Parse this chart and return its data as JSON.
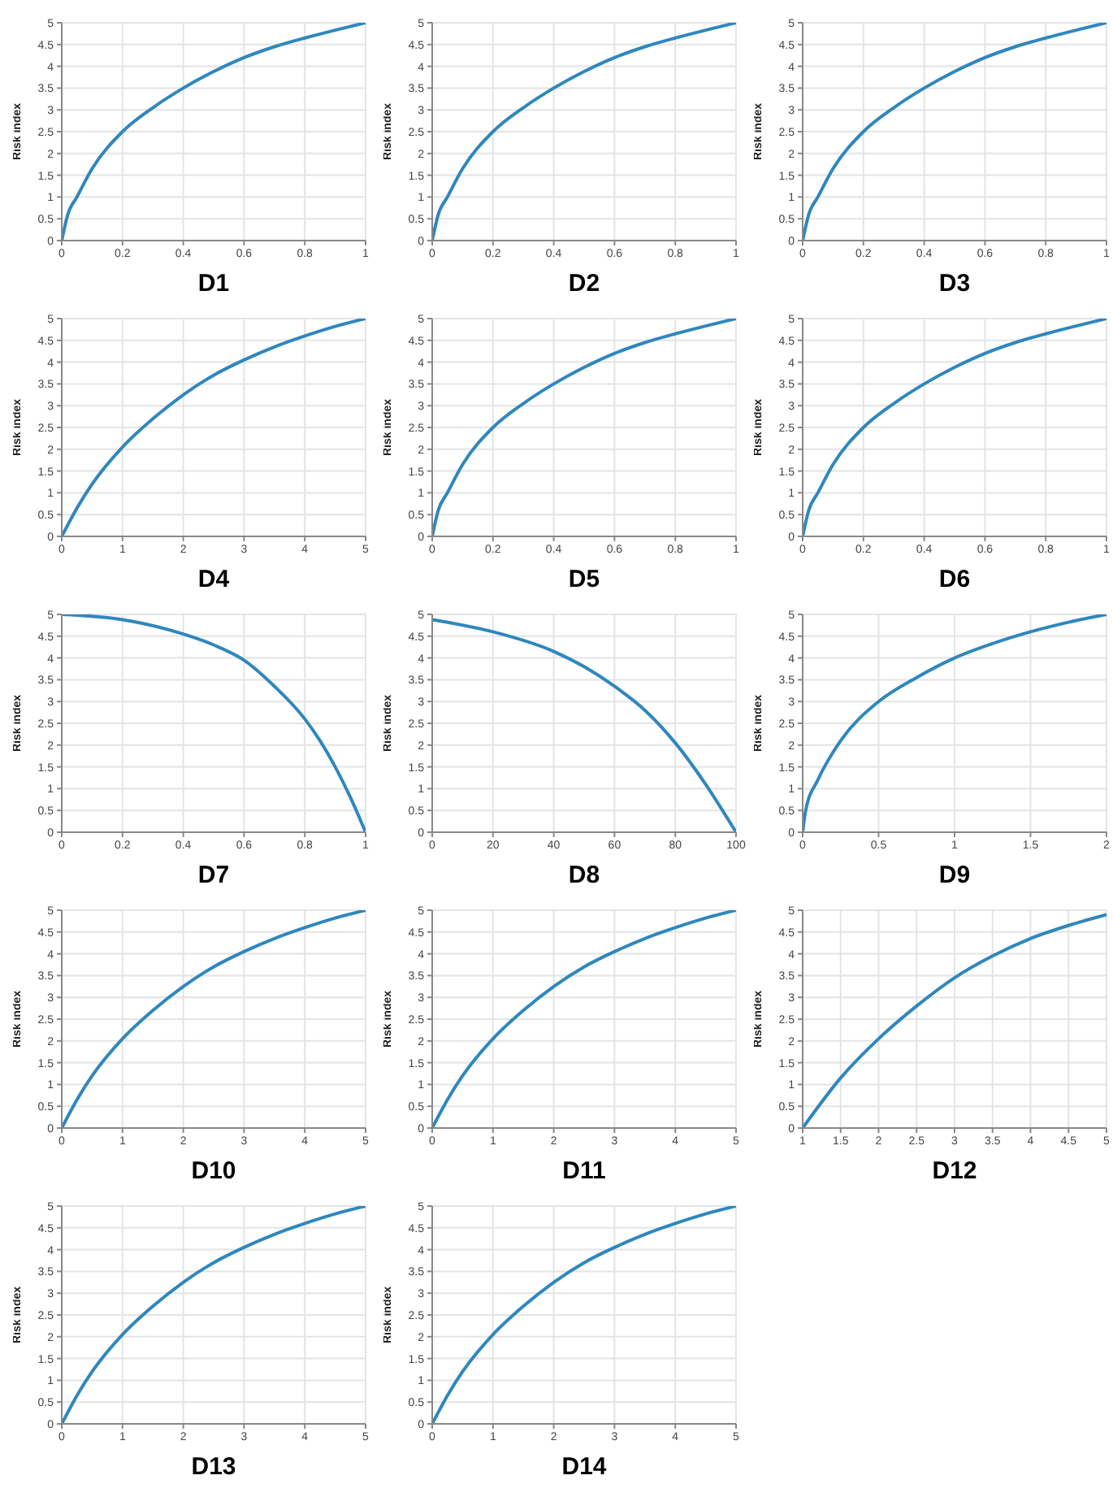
{
  "chart_data": [
    {
      "type": "line",
      "title": "D1",
      "ylabel": "Risk index",
      "x": [
        0,
        0.02,
        0.05,
        0.1,
        0.2,
        0.3,
        0.4,
        0.5,
        0.6,
        0.7,
        0.8,
        0.9,
        1
      ],
      "series": [
        {
          "color": "#2f87bd",
          "values": [
            0,
            0.6,
            1.0,
            1.65,
            2.5,
            3.05,
            3.5,
            3.88,
            4.2,
            4.45,
            4.65,
            4.83,
            5
          ]
        }
      ],
      "xlim": [
        0,
        1
      ],
      "ylim": [
        0,
        5
      ],
      "xticks": [
        0,
        0.2,
        0.4,
        0.6,
        0.8,
        1
      ],
      "yticks": [
        0,
        0.5,
        1,
        1.5,
        2,
        2.5,
        3,
        3.5,
        4,
        4.5,
        5
      ],
      "grid": true
    },
    {
      "type": "line",
      "title": "D2",
      "ylabel": "Risk index",
      "x": [
        0,
        0.02,
        0.05,
        0.1,
        0.2,
        0.3,
        0.4,
        0.5,
        0.6,
        0.7,
        0.8,
        0.9,
        1
      ],
      "series": [
        {
          "color": "#2f87bd",
          "values": [
            0,
            0.6,
            1.0,
            1.65,
            2.5,
            3.05,
            3.5,
            3.88,
            4.2,
            4.45,
            4.65,
            4.83,
            5
          ]
        }
      ],
      "xlim": [
        0,
        1
      ],
      "ylim": [
        0,
        5
      ],
      "xticks": [
        0,
        0.2,
        0.4,
        0.6,
        0.8,
        1
      ],
      "yticks": [
        0,
        0.5,
        1,
        1.5,
        2,
        2.5,
        3,
        3.5,
        4,
        4.5,
        5
      ],
      "grid": true
    },
    {
      "type": "line",
      "title": "D3",
      "ylabel": "Risk index",
      "x": [
        0,
        0.02,
        0.05,
        0.1,
        0.2,
        0.3,
        0.4,
        0.5,
        0.6,
        0.7,
        0.8,
        0.9,
        1
      ],
      "series": [
        {
          "color": "#2f87bd",
          "values": [
            0,
            0.6,
            1.0,
            1.65,
            2.5,
            3.05,
            3.5,
            3.88,
            4.2,
            4.45,
            4.65,
            4.83,
            5
          ]
        }
      ],
      "xlim": [
        0,
        1
      ],
      "ylim": [
        0,
        5
      ],
      "xticks": [
        0,
        0.2,
        0.4,
        0.6,
        0.8,
        1
      ],
      "yticks": [
        0,
        0.5,
        1,
        1.5,
        2,
        2.5,
        3,
        3.5,
        4,
        4.5,
        5
      ],
      "grid": true
    },
    {
      "type": "line",
      "title": "D4",
      "ylabel": "Risk index",
      "x": [
        0,
        0.25,
        0.5,
        1,
        1.5,
        2,
        2.5,
        3,
        3.5,
        4,
        4.5,
        5
      ],
      "series": [
        {
          "color": "#2f87bd",
          "values": [
            0,
            0.65,
            1.2,
            2.05,
            2.7,
            3.25,
            3.7,
            4.05,
            4.35,
            4.6,
            4.82,
            5
          ]
        }
      ],
      "xlim": [
        0,
        5
      ],
      "ylim": [
        0,
        5
      ],
      "xticks": [
        0,
        1,
        2,
        3,
        4,
        5
      ],
      "yticks": [
        0,
        0.5,
        1,
        1.5,
        2,
        2.5,
        3,
        3.5,
        4,
        4.5,
        5
      ],
      "grid": true
    },
    {
      "type": "line",
      "title": "D5",
      "ylabel": "Risk index",
      "x": [
        0,
        0.02,
        0.05,
        0.1,
        0.2,
        0.3,
        0.4,
        0.5,
        0.6,
        0.7,
        0.8,
        0.9,
        1
      ],
      "series": [
        {
          "color": "#2f87bd",
          "values": [
            0,
            0.6,
            1.0,
            1.65,
            2.5,
            3.05,
            3.5,
            3.88,
            4.2,
            4.45,
            4.65,
            4.83,
            5
          ]
        }
      ],
      "xlim": [
        0,
        1
      ],
      "ylim": [
        0,
        5
      ],
      "xticks": [
        0,
        0.2,
        0.4,
        0.6,
        0.8,
        1
      ],
      "yticks": [
        0,
        0.5,
        1,
        1.5,
        2,
        2.5,
        3,
        3.5,
        4,
        4.5,
        5
      ],
      "grid": true
    },
    {
      "type": "line",
      "title": "D6",
      "ylabel": "Risk index",
      "x": [
        0,
        0.02,
        0.05,
        0.1,
        0.2,
        0.3,
        0.4,
        0.5,
        0.6,
        0.7,
        0.8,
        0.9,
        1
      ],
      "series": [
        {
          "color": "#2f87bd",
          "values": [
            0,
            0.6,
            1.0,
            1.65,
            2.5,
            3.05,
            3.5,
            3.88,
            4.2,
            4.45,
            4.65,
            4.83,
            5
          ]
        }
      ],
      "xlim": [
        0,
        1
      ],
      "ylim": [
        0,
        5
      ],
      "xticks": [
        0,
        0.2,
        0.4,
        0.6,
        0.8,
        1
      ],
      "yticks": [
        0,
        0.5,
        1,
        1.5,
        2,
        2.5,
        3,
        3.5,
        4,
        4.5,
        5
      ],
      "grid": true
    },
    {
      "type": "line",
      "title": "D7",
      "ylabel": "Risk index",
      "x": [
        0,
        0.2,
        0.4,
        0.5,
        0.6,
        0.7,
        0.8,
        0.85,
        0.9,
        0.95,
        1
      ],
      "series": [
        {
          "color": "#2f87bd",
          "values": [
            5,
            4.88,
            4.55,
            4.3,
            3.95,
            3.35,
            2.6,
            2.1,
            1.5,
            0.8,
            0
          ]
        }
      ],
      "xlim": [
        0,
        1
      ],
      "ylim": [
        0,
        5
      ],
      "xticks": [
        0,
        0.2,
        0.4,
        0.6,
        0.8,
        1
      ],
      "yticks": [
        0,
        0.5,
        1,
        1.5,
        2,
        2.5,
        3,
        3.5,
        4,
        4.5,
        5
      ],
      "grid": true
    },
    {
      "type": "line",
      "title": "D8",
      "ylabel": "Risk index",
      "x": [
        0,
        20,
        40,
        50,
        60,
        70,
        80,
        90,
        100
      ],
      "series": [
        {
          "color": "#2f87bd",
          "values": [
            4.88,
            4.6,
            4.15,
            3.8,
            3.35,
            2.8,
            2.05,
            1.1,
            0
          ]
        }
      ],
      "xlim": [
        0,
        100
      ],
      "ylim": [
        0,
        5
      ],
      "xticks": [
        0,
        20,
        40,
        60,
        80,
        100
      ],
      "yticks": [
        0,
        0.5,
        1,
        1.5,
        2,
        2.5,
        3,
        3.5,
        4,
        4.5,
        5
      ],
      "grid": true
    },
    {
      "type": "line",
      "title": "D9",
      "ylabel": "Risk index",
      "x": [
        0,
        0.02,
        0.1,
        0.25,
        0.5,
        0.75,
        1,
        1.25,
        1.5,
        1.75,
        2
      ],
      "series": [
        {
          "color": "#2f87bd",
          "values": [
            0,
            0.5,
            1.2,
            2.1,
            3,
            3.55,
            4,
            4.33,
            4.6,
            4.82,
            5
          ]
        }
      ],
      "xlim": [
        0,
        2
      ],
      "ylim": [
        0,
        5
      ],
      "xticks": [
        0,
        0.5,
        1,
        1.5,
        2
      ],
      "yticks": [
        0,
        0.5,
        1,
        1.5,
        2,
        2.5,
        3,
        3.5,
        4,
        4.5,
        5
      ],
      "grid": true
    },
    {
      "type": "line",
      "title": "D10",
      "ylabel": "Risk index",
      "x": [
        0,
        0.25,
        0.5,
        1,
        1.5,
        2,
        2.5,
        3,
        3.5,
        4,
        4.5,
        5
      ],
      "series": [
        {
          "color": "#2f87bd",
          "values": [
            0,
            0.65,
            1.2,
            2.05,
            2.7,
            3.25,
            3.7,
            4.05,
            4.35,
            4.6,
            4.82,
            5
          ]
        }
      ],
      "xlim": [
        0,
        5
      ],
      "ylim": [
        0,
        5
      ],
      "xticks": [
        0,
        1,
        2,
        3,
        4,
        5
      ],
      "yticks": [
        0,
        0.5,
        1,
        1.5,
        2,
        2.5,
        3,
        3.5,
        4,
        4.5,
        5
      ],
      "grid": true
    },
    {
      "type": "line",
      "title": "D11",
      "ylabel": "Risk index",
      "x": [
        0,
        0.25,
        0.5,
        1,
        1.5,
        2,
        2.5,
        3,
        3.5,
        4,
        4.5,
        5
      ],
      "series": [
        {
          "color": "#2f87bd",
          "values": [
            0,
            0.65,
            1.2,
            2.05,
            2.7,
            3.25,
            3.7,
            4.05,
            4.35,
            4.6,
            4.82,
            5
          ]
        }
      ],
      "xlim": [
        0,
        5
      ],
      "ylim": [
        0,
        5
      ],
      "xticks": [
        0,
        1,
        2,
        3,
        4,
        5
      ],
      "yticks": [
        0,
        0.5,
        1,
        1.5,
        2,
        2.5,
        3,
        3.5,
        4,
        4.5,
        5
      ],
      "grid": true
    },
    {
      "type": "line",
      "title": "D12",
      "ylabel": "Risk index",
      "x": [
        1,
        1.5,
        2,
        2.5,
        3,
        3.5,
        4,
        4.5,
        5
      ],
      "series": [
        {
          "color": "#2f87bd",
          "values": [
            0,
            1.15,
            2.05,
            2.8,
            3.45,
            3.95,
            4.35,
            4.65,
            4.9
          ]
        }
      ],
      "xlim": [
        1,
        5
      ],
      "ylim": [
        0,
        5
      ],
      "xticks": [
        1,
        1.5,
        2,
        2.5,
        3,
        3.5,
        4,
        4.5,
        5
      ],
      "yticks": [
        0,
        0.5,
        1,
        1.5,
        2,
        2.5,
        3,
        3.5,
        4,
        4.5,
        5
      ],
      "grid": true
    },
    {
      "type": "line",
      "title": "D13",
      "ylabel": "Risk index",
      "x": [
        0,
        0.25,
        0.5,
        1,
        1.5,
        2,
        2.5,
        3,
        3.5,
        4,
        4.5,
        5
      ],
      "series": [
        {
          "color": "#2f87bd",
          "values": [
            0,
            0.65,
            1.2,
            2.05,
            2.7,
            3.25,
            3.7,
            4.05,
            4.35,
            4.6,
            4.82,
            5
          ]
        }
      ],
      "xlim": [
        0,
        5
      ],
      "ylim": [
        0,
        5
      ],
      "xticks": [
        0,
        1,
        2,
        3,
        4,
        5
      ],
      "yticks": [
        0,
        0.5,
        1,
        1.5,
        2,
        2.5,
        3,
        3.5,
        4,
        4.5,
        5
      ],
      "grid": true
    },
    {
      "type": "line",
      "title": "D14",
      "ylabel": "Risk index",
      "x": [
        0,
        0.25,
        0.5,
        1,
        1.5,
        2,
        2.5,
        3,
        3.5,
        4,
        4.5,
        5
      ],
      "series": [
        {
          "color": "#2f87bd",
          "values": [
            0,
            0.65,
            1.2,
            2.05,
            2.7,
            3.25,
            3.7,
            4.05,
            4.35,
            4.6,
            4.82,
            5
          ]
        }
      ],
      "xlim": [
        0,
        5
      ],
      "ylim": [
        0,
        5
      ],
      "xticks": [
        0,
        1,
        2,
        3,
        4,
        5
      ],
      "yticks": [
        0,
        0.5,
        1,
        1.5,
        2,
        2.5,
        3,
        3.5,
        4,
        4.5,
        5
      ],
      "grid": true
    }
  ]
}
